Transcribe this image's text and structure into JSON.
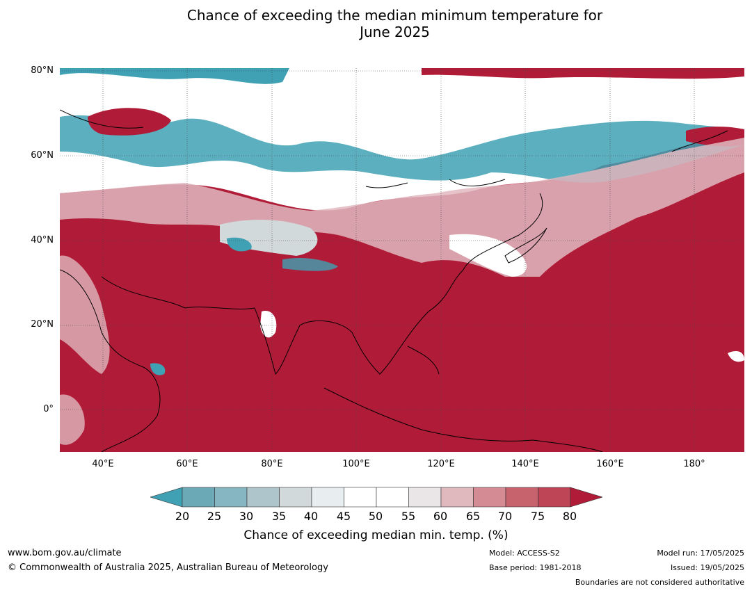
{
  "title": {
    "line1": "Chance of exceeding the median minimum temperature for",
    "line2": "June 2025"
  },
  "latitude_labels": [
    "80°N",
    "60°N",
    "40°N",
    "20°N",
    "0°"
  ],
  "longitude_labels": [
    "40°E",
    "60°E",
    "80°E",
    "100°E",
    "120°E",
    "140°E",
    "160°E",
    "180°"
  ],
  "colorbar": {
    "ticks": [
      "20",
      "25",
      "30",
      "35",
      "40",
      "45",
      "50",
      "55",
      "60",
      "65",
      "70",
      "75",
      "80"
    ],
    "label": "Chance of exceeding median min. temp. (%)",
    "colors": {
      "below": "#3fa1b3",
      "bins": [
        "#6ba9b6",
        "#86b6c2",
        "#aec6cb",
        "#d1d9db",
        "#e8eef0",
        "#ffffff",
        "#ffffff",
        "#eae6e7",
        "#e0b9bf",
        "#d58b93",
        "#c6636d",
        "#bd4555"
      ],
      "above": "#b01c38"
    }
  },
  "footer": {
    "website": "www.bom.gov.au/climate",
    "copyright": "© Commonwealth of Australia 2025, Australian Bureau of Meteorology",
    "model": "Model: ACCESS-S2",
    "base_period": "Base period: 1981-2018",
    "model_run": "Model run: 17/05/2025",
    "issued": "Issued: 19/05/2025",
    "disclaimer": "Boundaries are not considered authoritative"
  }
}
